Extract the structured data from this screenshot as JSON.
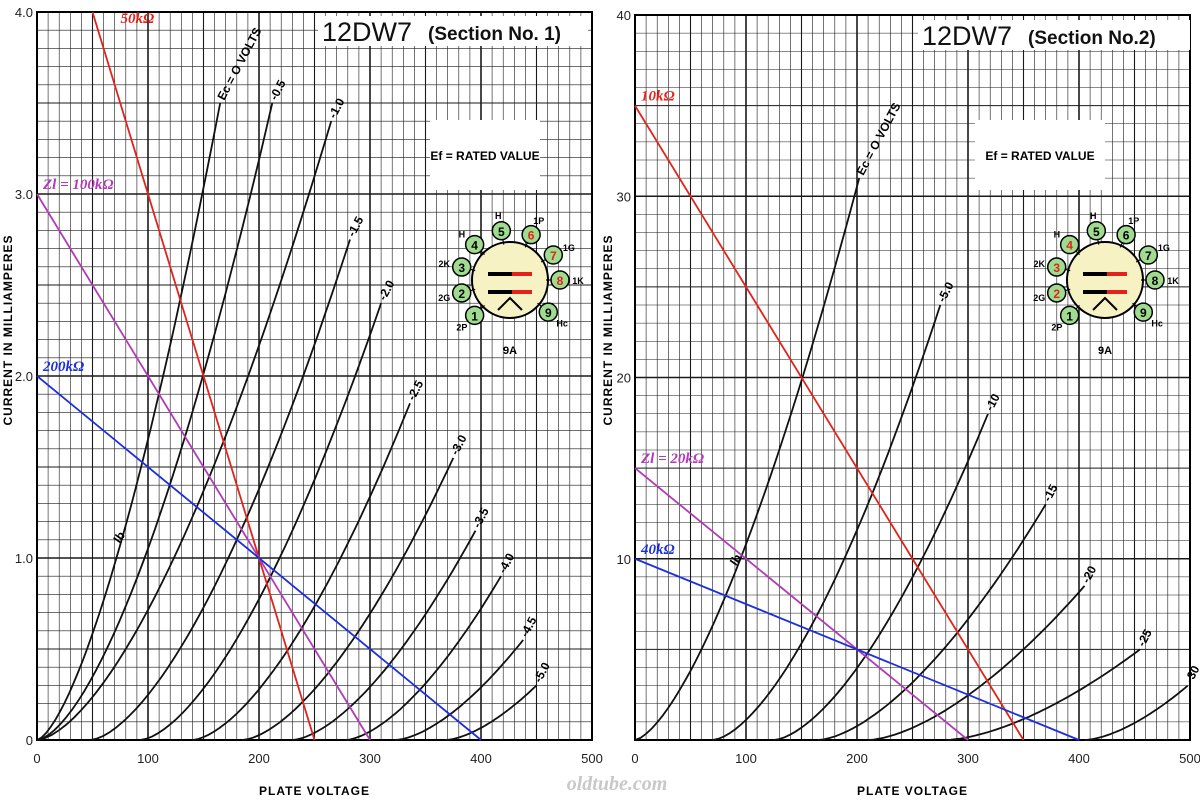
{
  "watermark": "oldtube.com",
  "colors": {
    "grid": "#1a1a1a",
    "curve": "#111111",
    "load_red": "#e3231b",
    "load_magenta": "#b23ab8",
    "load_blue": "#1d2ee0",
    "pin_fill": "#9fdc8f",
    "base_fill": "#f7f2c4"
  },
  "chart_data": [
    {
      "type": "line",
      "title": "12DW7",
      "subtitle": "(Section No. 1)",
      "xlabel": "PLATE VOLTAGE",
      "ylabel": "CURRENT IN MILLIAMPERES",
      "note": "Ef = RATED VALUE",
      "xlim": [
        0,
        500
      ],
      "ylim": [
        0,
        4.0
      ],
      "x_ticks": [
        "0",
        "100",
        "200",
        "300",
        "400",
        "500"
      ],
      "y_ticks": [
        "0",
        "1.0",
        "2.0",
        "3.0",
        "4.0"
      ],
      "grid": true,
      "ip_label": "Ib",
      "curves": [
        {
          "label": "Ec = O VOLTS",
          "v0": 0,
          "end": [
            165,
            3.5
          ]
        },
        {
          "label": "-0.5",
          "v0": 0,
          "end": [
            212,
            3.5
          ]
        },
        {
          "label": "-1.0",
          "v0": 0,
          "end": [
            265,
            3.4
          ]
        },
        {
          "label": "-1.5",
          "v0": 48,
          "end": [
            282,
            2.75
          ]
        },
        {
          "label": "-2.0",
          "v0": 93,
          "end": [
            310,
            2.4
          ]
        },
        {
          "label": "-2.5",
          "v0": 140,
          "end": [
            336,
            1.85
          ]
        },
        {
          "label": "-3.0",
          "v0": 185,
          "end": [
            375,
            1.55
          ]
        },
        {
          "label": "-3.5",
          "v0": 230,
          "end": [
            395,
            1.15
          ]
        },
        {
          "label": "-4.0",
          "v0": 278,
          "end": [
            418,
            0.9
          ]
        },
        {
          "label": "-4.5",
          "v0": 323,
          "end": [
            438,
            0.55
          ]
        },
        {
          "label": "-5.0",
          "v0": 368,
          "end": [
            450,
            0.3
          ]
        }
      ],
      "load_lines": [
        {
          "label": "50kΩ",
          "x": [
            50,
            250
          ],
          "y": [
            4.0,
            0
          ],
          "color": "#e3231b"
        },
        {
          "label": "Zl = 100kΩ",
          "x": [
            0,
            300
          ],
          "y": [
            3.0,
            0
          ],
          "color": "#b23ab8"
        },
        {
          "label": "200kΩ",
          "x": [
            0,
            400
          ],
          "y": [
            2.0,
            0
          ],
          "color": "#1d2ee0"
        }
      ],
      "pins": [
        "1",
        "2",
        "3",
        "4",
        "5",
        "6",
        "7",
        "8",
        "9"
      ],
      "pin_labels": [
        "2P",
        "2G",
        "2K",
        "H",
        "H",
        "1P",
        "1G",
        "1K",
        "Hc"
      ],
      "base_code": "9A"
    },
    {
      "type": "line",
      "title": "12DW7",
      "subtitle": "(Section No.2)",
      "xlabel": "PLATE VOLTAGE",
      "ylabel": "CURRENT IN MILLIAMPERES",
      "note": "Ef = RATED VALUE",
      "xlim": [
        0,
        500
      ],
      "ylim": [
        0,
        40
      ],
      "x_ticks": [
        "0",
        "100",
        "200",
        "300",
        "400",
        "500"
      ],
      "y_ticks": [
        "10",
        "20",
        "30",
        "40"
      ],
      "grid": true,
      "ip_label": "Ib",
      "curves": [
        {
          "label": "Ec = O VOLTS",
          "v0": 0,
          "end": [
            202,
            31
          ]
        },
        {
          "label": "-5.0",
          "v0": 70,
          "end": [
            275,
            24
          ]
        },
        {
          "label": "-10",
          "v0": 125,
          "end": [
            318,
            18
          ]
        },
        {
          "label": "-15",
          "v0": 165,
          "end": [
            370,
            13
          ]
        },
        {
          "label": "-20",
          "v0": 210,
          "end": [
            405,
            8.5
          ]
        },
        {
          "label": "-25",
          "v0": 280,
          "end": [
            455,
            5
          ]
        },
        {
          "label": "-30",
          "v0": 405,
          "end": [
            498,
            3
          ]
        }
      ],
      "load_lines": [
        {
          "label": "10kΩ",
          "x": [
            0,
            350
          ],
          "y": [
            35,
            0
          ],
          "color": "#e3231b"
        },
        {
          "label": "Zl = 20kΩ",
          "x": [
            0,
            300
          ],
          "y": [
            15,
            0
          ],
          "color": "#b23ab8"
        },
        {
          "label": "40kΩ",
          "x": [
            0,
            400
          ],
          "y": [
            10,
            0
          ],
          "color": "#1d2ee0"
        }
      ],
      "pins": [
        "1",
        "2",
        "3",
        "4",
        "5",
        "6",
        "7",
        "8",
        "9"
      ],
      "pin_labels": [
        "2P",
        "2G",
        "2K",
        "H",
        "H",
        "1P",
        "1G",
        "1K",
        "Hc"
      ],
      "base_code": "9A"
    }
  ]
}
